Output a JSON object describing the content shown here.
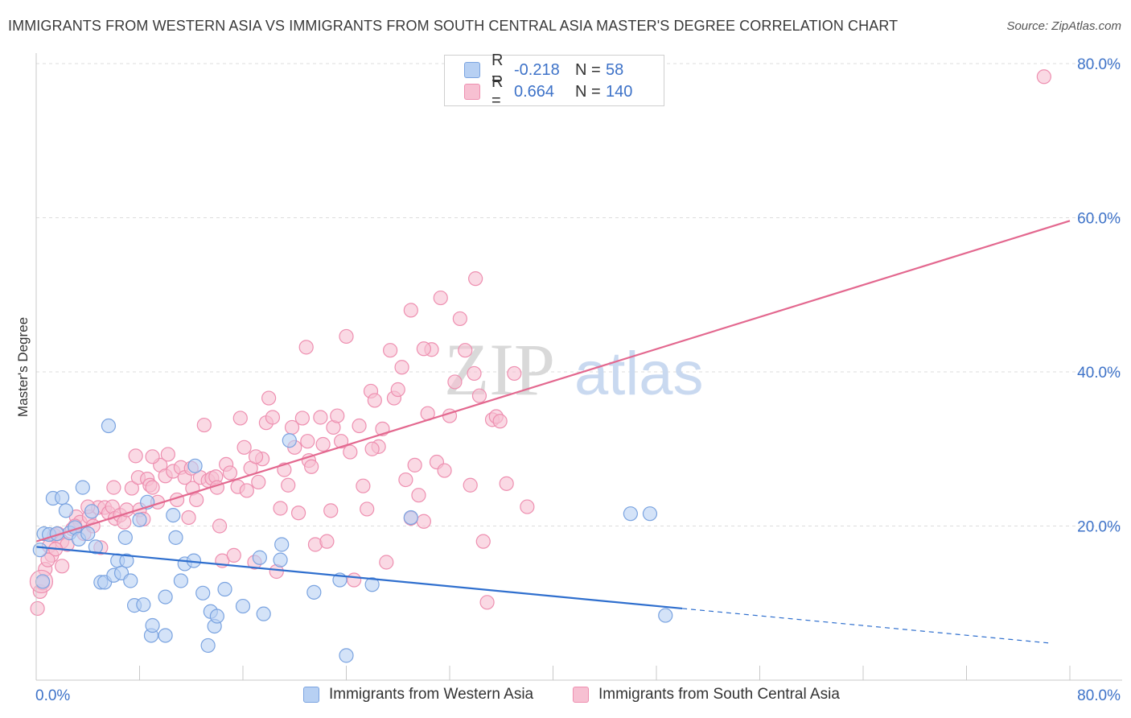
{
  "header": {
    "title": "IMMIGRANTS FROM WESTERN ASIA VS IMMIGRANTS FROM SOUTH CENTRAL ASIA MASTER'S DEGREE CORRELATION CHART",
    "source": "Source: ZipAtlas.com"
  },
  "watermark": {
    "part1": "ZIP",
    "part2": "atlas"
  },
  "legend": {
    "rows": [
      {
        "r_label": "R =",
        "r_value": "-0.218",
        "n_label": "N =",
        "n_value": "58"
      },
      {
        "r_label": "R =",
        "r_value": "0.664",
        "n_label": "N =",
        "n_value": "140"
      }
    ]
  },
  "bottom_legend": {
    "series_a": "Immigrants from Western Asia",
    "series_b": "Immigrants from South Central Asia"
  },
  "colors": {
    "blue_fill": "#b7d0f3",
    "blue_stroke": "#7aa3e0",
    "blue_line": "#2f6fce",
    "pink_fill": "#f7c0d2",
    "pink_stroke": "#ee8fb0",
    "pink_line": "#e3688f",
    "axis_label": "#3d72c8",
    "grid": "#dddddd"
  },
  "chart_data": {
    "type": "scatter",
    "ylabel": "Master's Degree",
    "xlim": [
      0,
      80
    ],
    "ylim": [
      0,
      80
    ],
    "x_tick_labels": [
      "0.0%",
      "80.0%"
    ],
    "y_tick_labels": [
      "20.0%",
      "40.0%",
      "60.0%",
      "80.0%"
    ],
    "y_tick_values": [
      20,
      40,
      60,
      80
    ],
    "x_minor_ticks": [
      0,
      8,
      16,
      24,
      32,
      40,
      48,
      56,
      64,
      72,
      80
    ],
    "series": [
      {
        "name": "Immigrants from Western Asia",
        "color": "blue",
        "trend": {
          "x0": 0,
          "y0": 17.3,
          "x1": 50,
          "y1": 9.3,
          "dash_to_x": 78.5,
          "dash_to_y": 4.8
        },
        "points": [
          [
            0.3,
            16.9
          ],
          [
            0.5,
            12.8
          ],
          [
            0.6,
            19.0
          ],
          [
            1.0,
            18.9
          ],
          [
            1.3,
            23.6
          ],
          [
            1.6,
            19.0
          ],
          [
            2.0,
            23.7
          ],
          [
            2.3,
            22.0
          ],
          [
            2.6,
            19.1
          ],
          [
            3.0,
            19.8
          ],
          [
            3.3,
            18.3
          ],
          [
            3.6,
            25.0
          ],
          [
            4.0,
            19.0
          ],
          [
            4.3,
            21.9
          ],
          [
            4.6,
            17.3
          ],
          [
            5.0,
            12.7
          ],
          [
            5.3,
            12.7
          ],
          [
            5.6,
            33.0
          ],
          [
            6.0,
            13.6
          ],
          [
            6.3,
            15.5
          ],
          [
            6.6,
            13.9
          ],
          [
            6.9,
            18.5
          ],
          [
            7.0,
            15.5
          ],
          [
            7.3,
            12.9
          ],
          [
            7.6,
            9.7
          ],
          [
            8.0,
            20.8
          ],
          [
            8.3,
            9.8
          ],
          [
            8.6,
            23.1
          ],
          [
            8.9,
            5.8
          ],
          [
            9.0,
            7.1
          ],
          [
            10.0,
            5.8
          ],
          [
            10.0,
            10.8
          ],
          [
            10.6,
            21.4
          ],
          [
            10.8,
            18.5
          ],
          [
            11.2,
            12.9
          ],
          [
            11.5,
            15.1
          ],
          [
            12.2,
            15.5
          ],
          [
            12.3,
            27.8
          ],
          [
            12.9,
            11.3
          ],
          [
            13.3,
            4.5
          ],
          [
            13.5,
            8.9
          ],
          [
            13.8,
            7.0
          ],
          [
            14.0,
            8.3
          ],
          [
            14.6,
            11.8
          ],
          [
            16.0,
            9.6
          ],
          [
            17.3,
            15.9
          ],
          [
            17.6,
            8.6
          ],
          [
            19.0,
            17.6
          ],
          [
            18.9,
            15.6
          ],
          [
            19.6,
            31.1
          ],
          [
            21.5,
            11.4
          ],
          [
            23.5,
            13.0
          ],
          [
            24.0,
            3.2
          ],
          [
            26.0,
            12.4
          ],
          [
            29.0,
            21.1
          ],
          [
            48.7,
            8.4
          ],
          [
            46.0,
            21.6
          ],
          [
            47.5,
            21.6
          ]
        ]
      },
      {
        "name": "Immigrants from South Central Asia",
        "color": "pink",
        "trend": {
          "x0": 0,
          "y0": 18.0,
          "x1": 80,
          "y1": 59.6
        },
        "points": [
          [
            0.1,
            9.3
          ],
          [
            0.3,
            11.5
          ],
          [
            0.5,
            12.6
          ],
          [
            0.7,
            14.4
          ],
          [
            1.0,
            17.4
          ],
          [
            1.2,
            16.2
          ],
          [
            1.4,
            18.8
          ],
          [
            1.7,
            19.0
          ],
          [
            2.0,
            18.0
          ],
          [
            2.4,
            17.6
          ],
          [
            2.8,
            19.6
          ],
          [
            3.1,
            21.2
          ],
          [
            3.4,
            20.5
          ],
          [
            3.7,
            19.0
          ],
          [
            4.1,
            21.2
          ],
          [
            4.4,
            20.0
          ],
          [
            4.8,
            22.4
          ],
          [
            5.0,
            17.2
          ],
          [
            5.3,
            22.4
          ],
          [
            5.6,
            21.7
          ],
          [
            5.9,
            22.5
          ],
          [
            6.1,
            21.0
          ],
          [
            6.5,
            21.4
          ],
          [
            6.8,
            20.5
          ],
          [
            7.0,
            22.1
          ],
          [
            7.4,
            24.9
          ],
          [
            7.7,
            29.1
          ],
          [
            7.9,
            26.3
          ],
          [
            8.0,
            22.1
          ],
          [
            8.3,
            20.9
          ],
          [
            8.6,
            26.1
          ],
          [
            8.8,
            25.3
          ],
          [
            9.0,
            25.0
          ],
          [
            9.4,
            23.1
          ],
          [
            9.6,
            27.9
          ],
          [
            10.0,
            26.5
          ],
          [
            10.2,
            29.3
          ],
          [
            10.6,
            27.1
          ],
          [
            10.9,
            23.4
          ],
          [
            11.2,
            27.6
          ],
          [
            11.5,
            26.3
          ],
          [
            11.8,
            21.1
          ],
          [
            12.1,
            24.9
          ],
          [
            12.4,
            23.4
          ],
          [
            12.7,
            26.3
          ],
          [
            13.0,
            33.1
          ],
          [
            13.3,
            25.9
          ],
          [
            13.6,
            26.2
          ],
          [
            13.9,
            26.4
          ],
          [
            14.2,
            20.0
          ],
          [
            14.4,
            15.5
          ],
          [
            14.7,
            28.0
          ],
          [
            15.0,
            26.9
          ],
          [
            15.3,
            16.2
          ],
          [
            15.6,
            25.1
          ],
          [
            15.8,
            34.0
          ],
          [
            16.1,
            30.2
          ],
          [
            16.3,
            24.6
          ],
          [
            16.6,
            27.5
          ],
          [
            16.9,
            15.3
          ],
          [
            17.2,
            25.7
          ],
          [
            17.5,
            28.7
          ],
          [
            17.8,
            33.4
          ],
          [
            18.0,
            36.6
          ],
          [
            18.3,
            34.1
          ],
          [
            18.6,
            14.1
          ],
          [
            18.9,
            22.3
          ],
          [
            19.2,
            27.3
          ],
          [
            19.5,
            25.3
          ],
          [
            19.8,
            32.8
          ],
          [
            20.0,
            30.2
          ],
          [
            20.3,
            21.7
          ],
          [
            20.6,
            34.0
          ],
          [
            20.9,
            43.2
          ],
          [
            21.1,
            28.5
          ],
          [
            21.3,
            27.7
          ],
          [
            21.6,
            17.6
          ],
          [
            22.0,
            34.1
          ],
          [
            22.2,
            30.6
          ],
          [
            22.5,
            18.0
          ],
          [
            22.8,
            22.0
          ],
          [
            23.0,
            32.8
          ],
          [
            23.3,
            34.3
          ],
          [
            23.6,
            31.0
          ],
          [
            24.0,
            44.6
          ],
          [
            24.3,
            29.6
          ],
          [
            24.6,
            13.0
          ],
          [
            25.0,
            33.0
          ],
          [
            25.3,
            25.2
          ],
          [
            25.6,
            22.2
          ],
          [
            25.9,
            37.5
          ],
          [
            26.2,
            36.3
          ],
          [
            26.5,
            30.3
          ],
          [
            26.8,
            32.6
          ],
          [
            27.1,
            15.3
          ],
          [
            27.4,
            42.8
          ],
          [
            27.7,
            36.6
          ],
          [
            28.0,
            37.7
          ],
          [
            28.3,
            40.6
          ],
          [
            28.6,
            26.0
          ],
          [
            29.0,
            21.0
          ],
          [
            29.3,
            27.9
          ],
          [
            29.6,
            24.0
          ],
          [
            30.0,
            20.6
          ],
          [
            30.3,
            34.6
          ],
          [
            30.6,
            42.9
          ],
          [
            31.0,
            28.3
          ],
          [
            31.3,
            49.6
          ],
          [
            31.6,
            27.2
          ],
          [
            32.0,
            34.3
          ],
          [
            32.4,
            38.7
          ],
          [
            32.8,
            46.9
          ],
          [
            33.2,
            42.8
          ],
          [
            33.6,
            25.3
          ],
          [
            33.9,
            39.8
          ],
          [
            34.3,
            36.9
          ],
          [
            34.6,
            18.0
          ],
          [
            34.9,
            10.1
          ],
          [
            35.3,
            33.8
          ],
          [
            35.6,
            34.2
          ],
          [
            35.9,
            33.6
          ],
          [
            36.4,
            25.5
          ],
          [
            37.0,
            39.8
          ],
          [
            38.0,
            22.5
          ],
          [
            34.0,
            52.1
          ],
          [
            78.0,
            78.3
          ],
          [
            30.0,
            43.0
          ],
          [
            29.0,
            48.0
          ],
          [
            12.0,
            27.5
          ],
          [
            9.0,
            29.0
          ],
          [
            6.0,
            25.0
          ],
          [
            4.0,
            22.5
          ],
          [
            3.0,
            20.0
          ],
          [
            2.0,
            14.8
          ],
          [
            1.5,
            17.0
          ],
          [
            0.9,
            15.6
          ],
          [
            14.0,
            25.0
          ],
          [
            21.0,
            31.0
          ],
          [
            26.0,
            30.0
          ],
          [
            17.0,
            29.0
          ]
        ]
      }
    ]
  }
}
